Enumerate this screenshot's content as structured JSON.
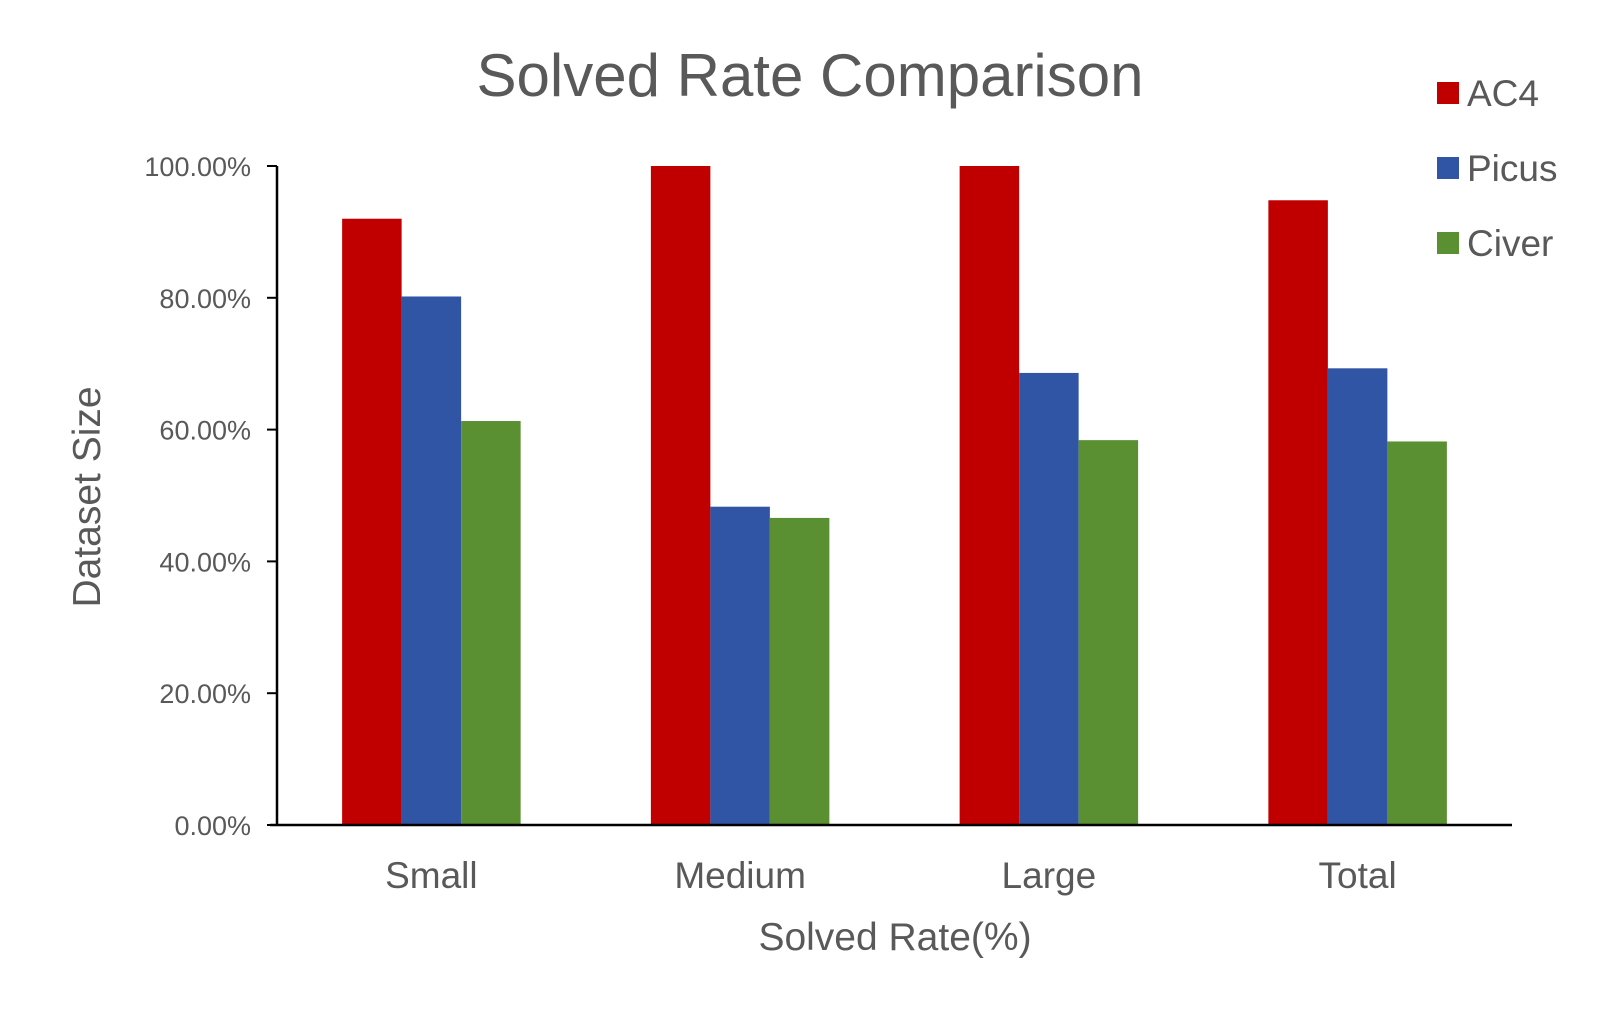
{
  "chart_data": {
    "type": "bar",
    "title": "Solved Rate Comparison",
    "xlabel": "Solved Rate(%)",
    "ylabel": "Dataset Size",
    "categories": [
      "Small",
      "Medium",
      "Large",
      "Total"
    ],
    "series": [
      {
        "name": "AC4",
        "color": "#C00000",
        "values": [
          92.0,
          100.0,
          100.0,
          94.8
        ]
      },
      {
        "name": "Picus",
        "color": "#2F55A4",
        "values": [
          80.2,
          48.3,
          68.6,
          69.3
        ]
      },
      {
        "name": "Civer",
        "color": "#5A8F32",
        "values": [
          61.3,
          46.6,
          58.4,
          58.2
        ]
      }
    ],
    "ylim": [
      0,
      100
    ],
    "yticks": [
      0,
      20,
      40,
      60,
      80,
      100
    ],
    "ytick_labels": [
      "0.00%",
      "20.00%",
      "40.00%",
      "60.00%",
      "80.00%",
      "100.00%"
    ],
    "grid": false,
    "legend_position": "top-right"
  }
}
